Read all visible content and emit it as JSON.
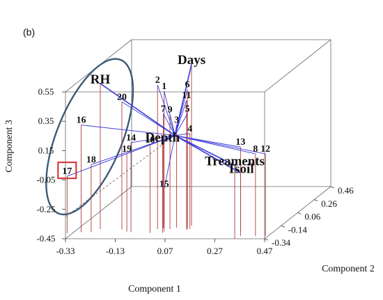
{
  "chart_data": {
    "type": "scatter",
    "subtype": "3d-biplot",
    "panel_label": "(b)",
    "xlabel": "Component 1",
    "ylabel": "Component 2",
    "zlabel": "Component 3",
    "x_ticks": [
      "-0.33",
      "-0.13",
      "0.07",
      "0.27",
      "0.47"
    ],
    "y_ticks": [
      "-0.34",
      "-0.14",
      "0.06",
      "0.26",
      "0.46"
    ],
    "z_ticks": [
      "-0.45",
      "-0.25",
      "-0.05",
      "0.15",
      "0.35",
      "0.55"
    ],
    "xlim": [
      -0.33,
      0.47
    ],
    "ylim": [
      -0.34,
      0.46
    ],
    "zlim": [
      -0.45,
      0.55
    ],
    "grid": false,
    "colors": {
      "box": "#666666",
      "stem": "#b03a3a",
      "vector": "#3a3ad8",
      "ellipse": "#3d5a78",
      "highlight": "#d42a2a"
    },
    "observations": [
      {
        "label": "1",
        "x": 0.01,
        "y": -0.17,
        "z": 0.48
      },
      {
        "label": "2",
        "x": -0.01,
        "y": -0.19,
        "z": 0.53
      },
      {
        "label": "3",
        "x": 0.06,
        "y": -0.17,
        "z": 0.25
      },
      {
        "label": "4",
        "x": 0.12,
        "y": -0.19,
        "z": 0.2
      },
      {
        "label": "5",
        "x": 0.1,
        "y": -0.16,
        "z": 0.32
      },
      {
        "label": "6",
        "x": 0.11,
        "y": -0.19,
        "z": 0.5
      },
      {
        "label": "7",
        "x": 0.01,
        "y": -0.18,
        "z": 0.33
      },
      {
        "label": "8",
        "x": 0.42,
        "y": -0.3,
        "z": 0.11
      },
      {
        "label": "9",
        "x": 0.04,
        "y": -0.19,
        "z": 0.33
      },
      {
        "label": "10",
        "x": -0.02,
        "y": -0.25,
        "z": 0.15
      },
      {
        "label": "11",
        "x": 0.11,
        "y": -0.2,
        "z": 0.43
      },
      {
        "label": "12",
        "x": 0.46,
        "y": -0.3,
        "z": 0.11
      },
      {
        "label": "13",
        "x": 0.34,
        "y": -0.24,
        "z": 0.13
      },
      {
        "label": "14",
        "x": -0.1,
        "y": -0.24,
        "z": 0.16
      },
      {
        "label": "15",
        "x": 0.03,
        "y": -0.23,
        "z": -0.16
      },
      {
        "label": "16",
        "x": -0.3,
        "y": -0.24,
        "z": 0.28
      },
      {
        "label": "17",
        "x": -0.35,
        "y": -0.26,
        "z": -0.06
      },
      {
        "label": "18",
        "x": -0.26,
        "y": -0.24,
        "z": 0.01
      },
      {
        "label": "19",
        "x": -0.12,
        "y": -0.23,
        "z": 0.08
      },
      {
        "label": "20",
        "x": -0.15,
        "y": -0.2,
        "z": 0.42
      }
    ],
    "highlighted": "17",
    "variables": [
      {
        "label": "RH",
        "x": -0.24,
        "y": -0.19,
        "z": 0.54
      },
      {
        "label": "Days",
        "x": 0.11,
        "y": -0.14,
        "z": 0.65
      },
      {
        "label": "Depth",
        "x": 0.03,
        "y": -0.25,
        "z": 0.17
      },
      {
        "label": "Treaments",
        "x": 0.35,
        "y": -0.34,
        "z": 0.05
      },
      {
        "label": "Tsoil",
        "x": 0.36,
        "y": -0.3,
        "z": -0.02
      }
    ],
    "origin": {
      "x": 0.07,
      "y": -0.22,
      "z": 0.2
    }
  }
}
